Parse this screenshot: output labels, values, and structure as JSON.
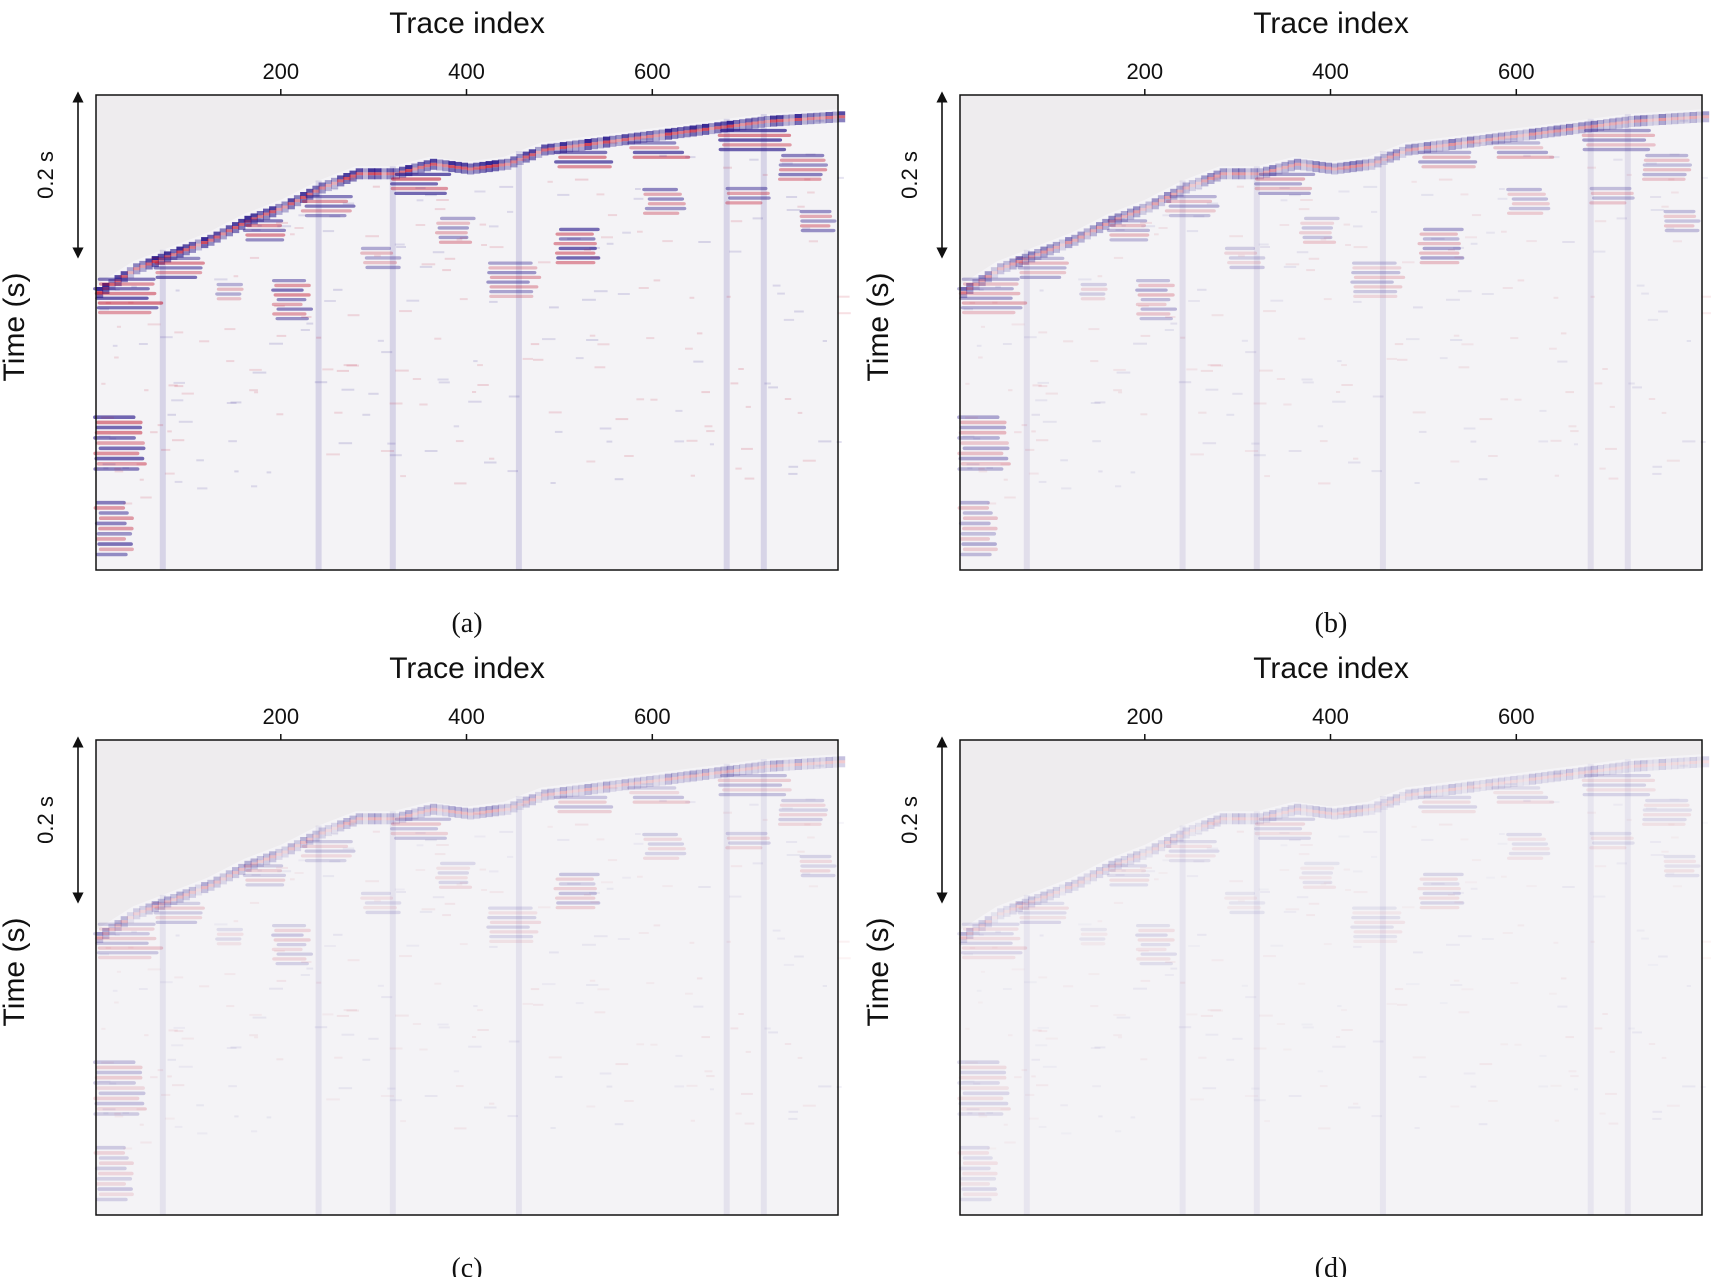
{
  "figure": {
    "panels": [
      {
        "caption": "(a)",
        "intensity": 1.0
      },
      {
        "caption": "(b)",
        "intensity": 0.55
      },
      {
        "caption": "(c)",
        "intensity": 0.35
      },
      {
        "caption": "(d)",
        "intensity": 0.22
      }
    ],
    "colors": {
      "positive": "#c0102a",
      "negative": "#2a1a8c",
      "mute_zone": "#eeecee",
      "background": "#f4f3f6",
      "frame": "#111111"
    }
  },
  "chart_data": [
    {
      "type": "heatmap",
      "panel": "(a)",
      "xlabel": "Trace index",
      "ylabel": "Time (s)",
      "scale_bar_label": "0.2 s",
      "x_ticks": [
        200,
        400,
        600
      ],
      "x_range": [
        1,
        800
      ]
    },
    {
      "type": "heatmap",
      "panel": "(b)",
      "xlabel": "Trace index",
      "ylabel": "Time (s)",
      "scale_bar_label": "0.2 s",
      "x_ticks": [
        200,
        400,
        600
      ],
      "x_range": [
        1,
        800
      ]
    },
    {
      "type": "heatmap",
      "panel": "(c)",
      "xlabel": "Trace index",
      "ylabel": "Time (s)",
      "scale_bar_label": "0.2 s",
      "x_ticks": [
        200,
        400,
        600
      ],
      "x_range": [
        1,
        800
      ]
    },
    {
      "type": "heatmap",
      "panel": "(d)",
      "xlabel": "Trace index",
      "ylabel": "Time (s)",
      "scale_bar_label": "0.2 s",
      "x_ticks": [
        200,
        400,
        600
      ],
      "x_range": [
        1,
        800
      ]
    }
  ]
}
